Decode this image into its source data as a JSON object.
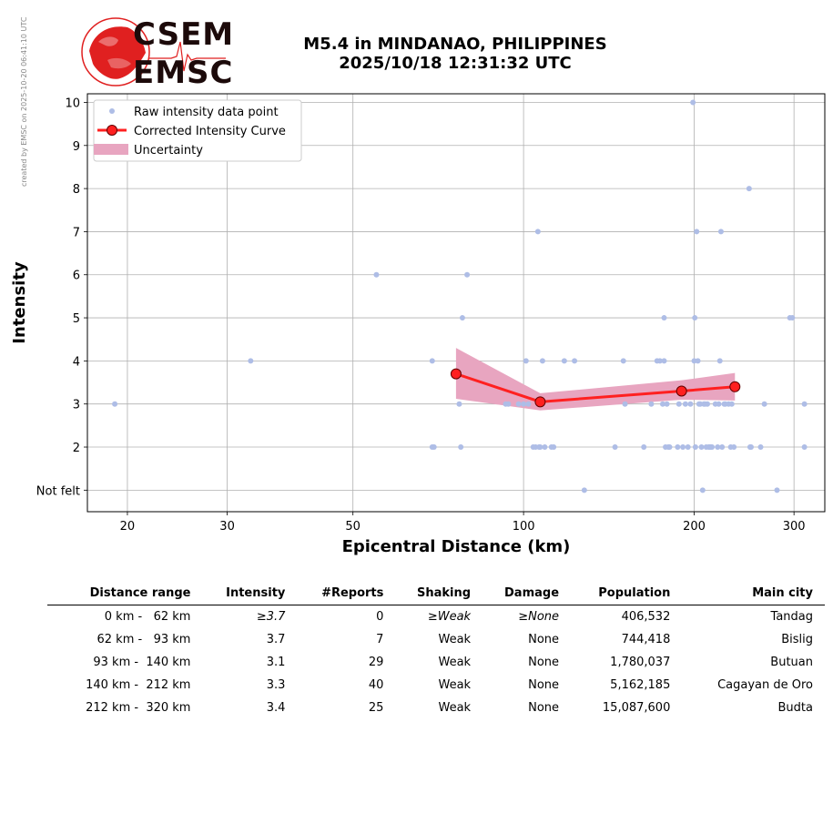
{
  "credit": "created by EMSC on 2025-10-20 06:41:10 UTC",
  "logo": {
    "top": "CSEM",
    "bottom": "EMSC"
  },
  "title_line1": "M5.4 in MINDANAO, PHILIPPINES",
  "title_line2": "2025/10/18 12:31:32 UTC",
  "colors": {
    "raw": "#aebde6",
    "curve": "#ff2020",
    "marker_edge": "#600000",
    "uncertainty": "#e8a5c0",
    "grid": "#b0b0b0"
  },
  "chart_data": {
    "type": "scatter",
    "xlabel": "Epicentral Distance (km)",
    "ylabel": "Intensity",
    "x_scale": "log",
    "xlim": [
      17,
      340
    ],
    "ylim": [
      0.5,
      10.2
    ],
    "x_ticks": [
      20,
      30,
      50,
      100,
      200,
      300
    ],
    "y_ticks": [
      {
        "value": 1,
        "label": "Not felt"
      },
      {
        "value": 2,
        "label": "2"
      },
      {
        "value": 3,
        "label": "3"
      },
      {
        "value": 4,
        "label": "4"
      },
      {
        "value": 5,
        "label": "5"
      },
      {
        "value": 6,
        "label": "6"
      },
      {
        "value": 7,
        "label": "7"
      },
      {
        "value": 8,
        "label": "8"
      },
      {
        "value": 9,
        "label": "9"
      },
      {
        "value": 10,
        "label": "10"
      }
    ],
    "grid": true,
    "legend_position": "upper-left",
    "legend": [
      "Raw intensity data point",
      "Corrected Intensity Curve",
      "Uncertainty"
    ],
    "raw_points": [
      [
        19,
        3
      ],
      [
        33,
        4
      ],
      [
        55,
        6
      ],
      [
        69,
        4
      ],
      [
        69,
        2
      ],
      [
        69.5,
        2
      ],
      [
        77,
        3
      ],
      [
        77.5,
        2
      ],
      [
        78,
        5
      ],
      [
        79.5,
        6
      ],
      [
        93,
        3
      ],
      [
        94,
        3
      ],
      [
        98,
        3
      ],
      [
        100,
        3
      ],
      [
        101,
        4
      ],
      [
        102,
        3
      ],
      [
        104,
        2
      ],
      [
        105,
        2
      ],
      [
        106,
        7
      ],
      [
        106.5,
        2
      ],
      [
        107,
        2
      ],
      [
        108,
        4
      ],
      [
        109,
        2
      ],
      [
        112,
        2
      ],
      [
        113,
        2
      ],
      [
        118,
        4
      ],
      [
        123,
        4
      ],
      [
        128,
        1
      ],
      [
        145,
        2
      ],
      [
        150,
        4
      ],
      [
        151,
        3
      ],
      [
        163,
        2
      ],
      [
        168,
        3
      ],
      [
        172,
        4
      ],
      [
        174,
        4
      ],
      [
        176,
        3
      ],
      [
        177,
        5
      ],
      [
        177,
        4
      ],
      [
        178,
        2
      ],
      [
        179,
        3
      ],
      [
        180,
        2
      ],
      [
        181,
        2
      ],
      [
        187,
        2
      ],
      [
        188,
        3
      ],
      [
        191,
        2
      ],
      [
        193,
        3
      ],
      [
        195,
        2
      ],
      [
        197,
        3
      ],
      [
        199,
        10
      ],
      [
        200,
        4
      ],
      [
        200.5,
        5
      ],
      [
        201,
        2
      ],
      [
        202,
        7
      ],
      [
        203,
        4
      ],
      [
        204,
        3
      ],
      [
        205,
        3
      ],
      [
        206,
        2
      ],
      [
        207,
        1
      ],
      [
        208,
        3
      ],
      [
        209,
        3
      ],
      [
        210,
        2
      ],
      [
        211,
        3
      ],
      [
        212,
        2
      ],
      [
        213,
        2
      ],
      [
        214,
        2
      ],
      [
        215,
        2
      ],
      [
        218,
        3
      ],
      [
        220,
        2
      ],
      [
        221,
        3
      ],
      [
        222,
        4
      ],
      [
        223,
        7
      ],
      [
        224,
        2
      ],
      [
        226,
        3
      ],
      [
        227,
        3
      ],
      [
        230,
        3
      ],
      [
        232,
        2
      ],
      [
        233,
        3
      ],
      [
        235,
        2
      ],
      [
        250,
        8
      ],
      [
        251,
        2
      ],
      [
        252,
        2
      ],
      [
        262,
        2
      ],
      [
        266,
        3
      ],
      [
        280,
        1
      ],
      [
        295,
        5
      ],
      [
        298,
        5
      ],
      [
        313,
        3
      ],
      [
        313,
        2
      ]
    ],
    "curve": {
      "x": [
        76,
        107,
        190,
        236
      ],
      "y": [
        3.7,
        3.05,
        3.3,
        3.4
      ]
    },
    "uncertainty": {
      "x": [
        76,
        107,
        190,
        236
      ],
      "lower": [
        3.12,
        2.85,
        3.1,
        3.08
      ],
      "upper": [
        4.3,
        3.25,
        3.55,
        3.72
      ]
    }
  },
  "table": {
    "headers": [
      "Distance range",
      "Intensity",
      "#Reports",
      "Shaking",
      "Damage",
      "Population",
      "Main city"
    ],
    "rows": [
      [
        "  0 km -   62 km",
        "≥3.7",
        "0",
        "≥Weak",
        "≥None",
        "406,532",
        "Tandag"
      ],
      [
        " 62 km -   93 km",
        "3.7",
        "7",
        "Weak",
        "None",
        "744,418",
        "Bislig"
      ],
      [
        " 93 km -  140 km",
        "3.1",
        "29",
        "Weak",
        "None",
        "1,780,037",
        "Butuan"
      ],
      [
        "140 km -  212 km",
        "3.3",
        "40",
        "Weak",
        "None",
        "5,162,185",
        "Cagayan de Oro"
      ],
      [
        "212 km -  320 km",
        "3.4",
        "25",
        "Weak",
        "None",
        "15,087,600",
        "Budta"
      ]
    ]
  }
}
